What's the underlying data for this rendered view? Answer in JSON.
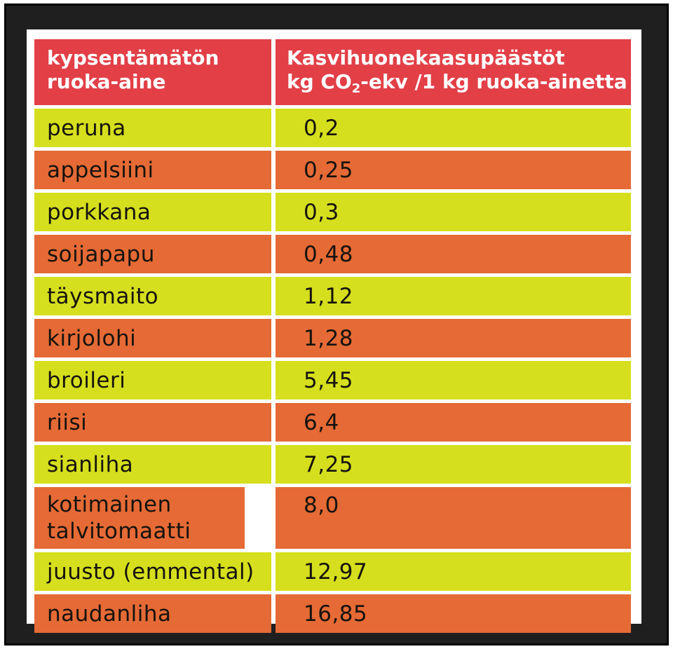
{
  "colors": {
    "header": "#e23f47",
    "yellow_row": "#d5df1d",
    "orange_row": "#e56a35",
    "frame": "#1f1f1f"
  },
  "header": {
    "col1_line1": "kypsentämätön",
    "col1_line2": "ruoka-aine",
    "col2_line1": "Kasvihuonekaasupäästöt",
    "col2_line2_a": "kg CO",
    "col2_line2_sub": "2",
    "col2_line2_b": "-ekv /1 kg ruoka-ainetta"
  },
  "rows": [
    {
      "name": "peruna",
      "value": "0,2"
    },
    {
      "name": "appelsiini",
      "value": "0,25"
    },
    {
      "name": "porkkana",
      "value": "0,3"
    },
    {
      "name": "soijapapu",
      "value": "0,48"
    },
    {
      "name": "täysmaito",
      "value": "1,12"
    },
    {
      "name": "kirjolohi",
      "value": "1,28"
    },
    {
      "name": "broileri",
      "value": "5,45"
    },
    {
      "name": "riisi",
      "value": "6,4"
    },
    {
      "name": "sianliha",
      "value": "7,25"
    },
    {
      "name": "kotimainen talvitomaatti",
      "value": "8,0"
    },
    {
      "name": "juusto (emmental)",
      "value": "12,97"
    },
    {
      "name": "naudanliha",
      "value": "16,85"
    }
  ]
}
